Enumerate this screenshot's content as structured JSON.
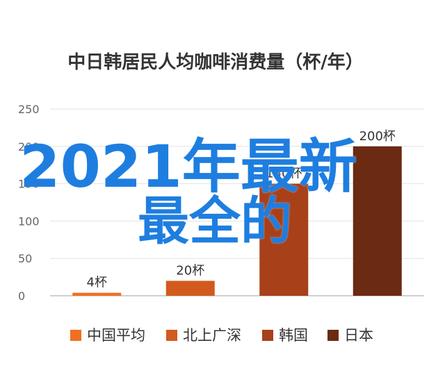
{
  "chart_data": {
    "type": "bar",
    "title": "中日韩居民人均咖啡消费量（杯/年）",
    "xlabel": "",
    "ylabel": "",
    "ylim": [
      0,
      250
    ],
    "yticks": [
      0,
      50,
      100,
      150,
      200,
      250
    ],
    "grid": true,
    "legend_position": "bottom",
    "series": [
      {
        "name": "中国平均",
        "value": 4,
        "label": "4杯",
        "color": "#f07020"
      },
      {
        "name": "北上广深",
        "value": 20,
        "label": "20杯",
        "color": "#d25a1e"
      },
      {
        "name": "韩国",
        "value": 150,
        "label": "150杯",
        "color": "#a8401a"
      },
      {
        "name": "日本",
        "value": 200,
        "label": "200杯",
        "color": "#6b2a12"
      }
    ]
  },
  "overlay": {
    "line1": "2021年最新",
    "line2": "最全的",
    "color": "#1e7ee0"
  }
}
